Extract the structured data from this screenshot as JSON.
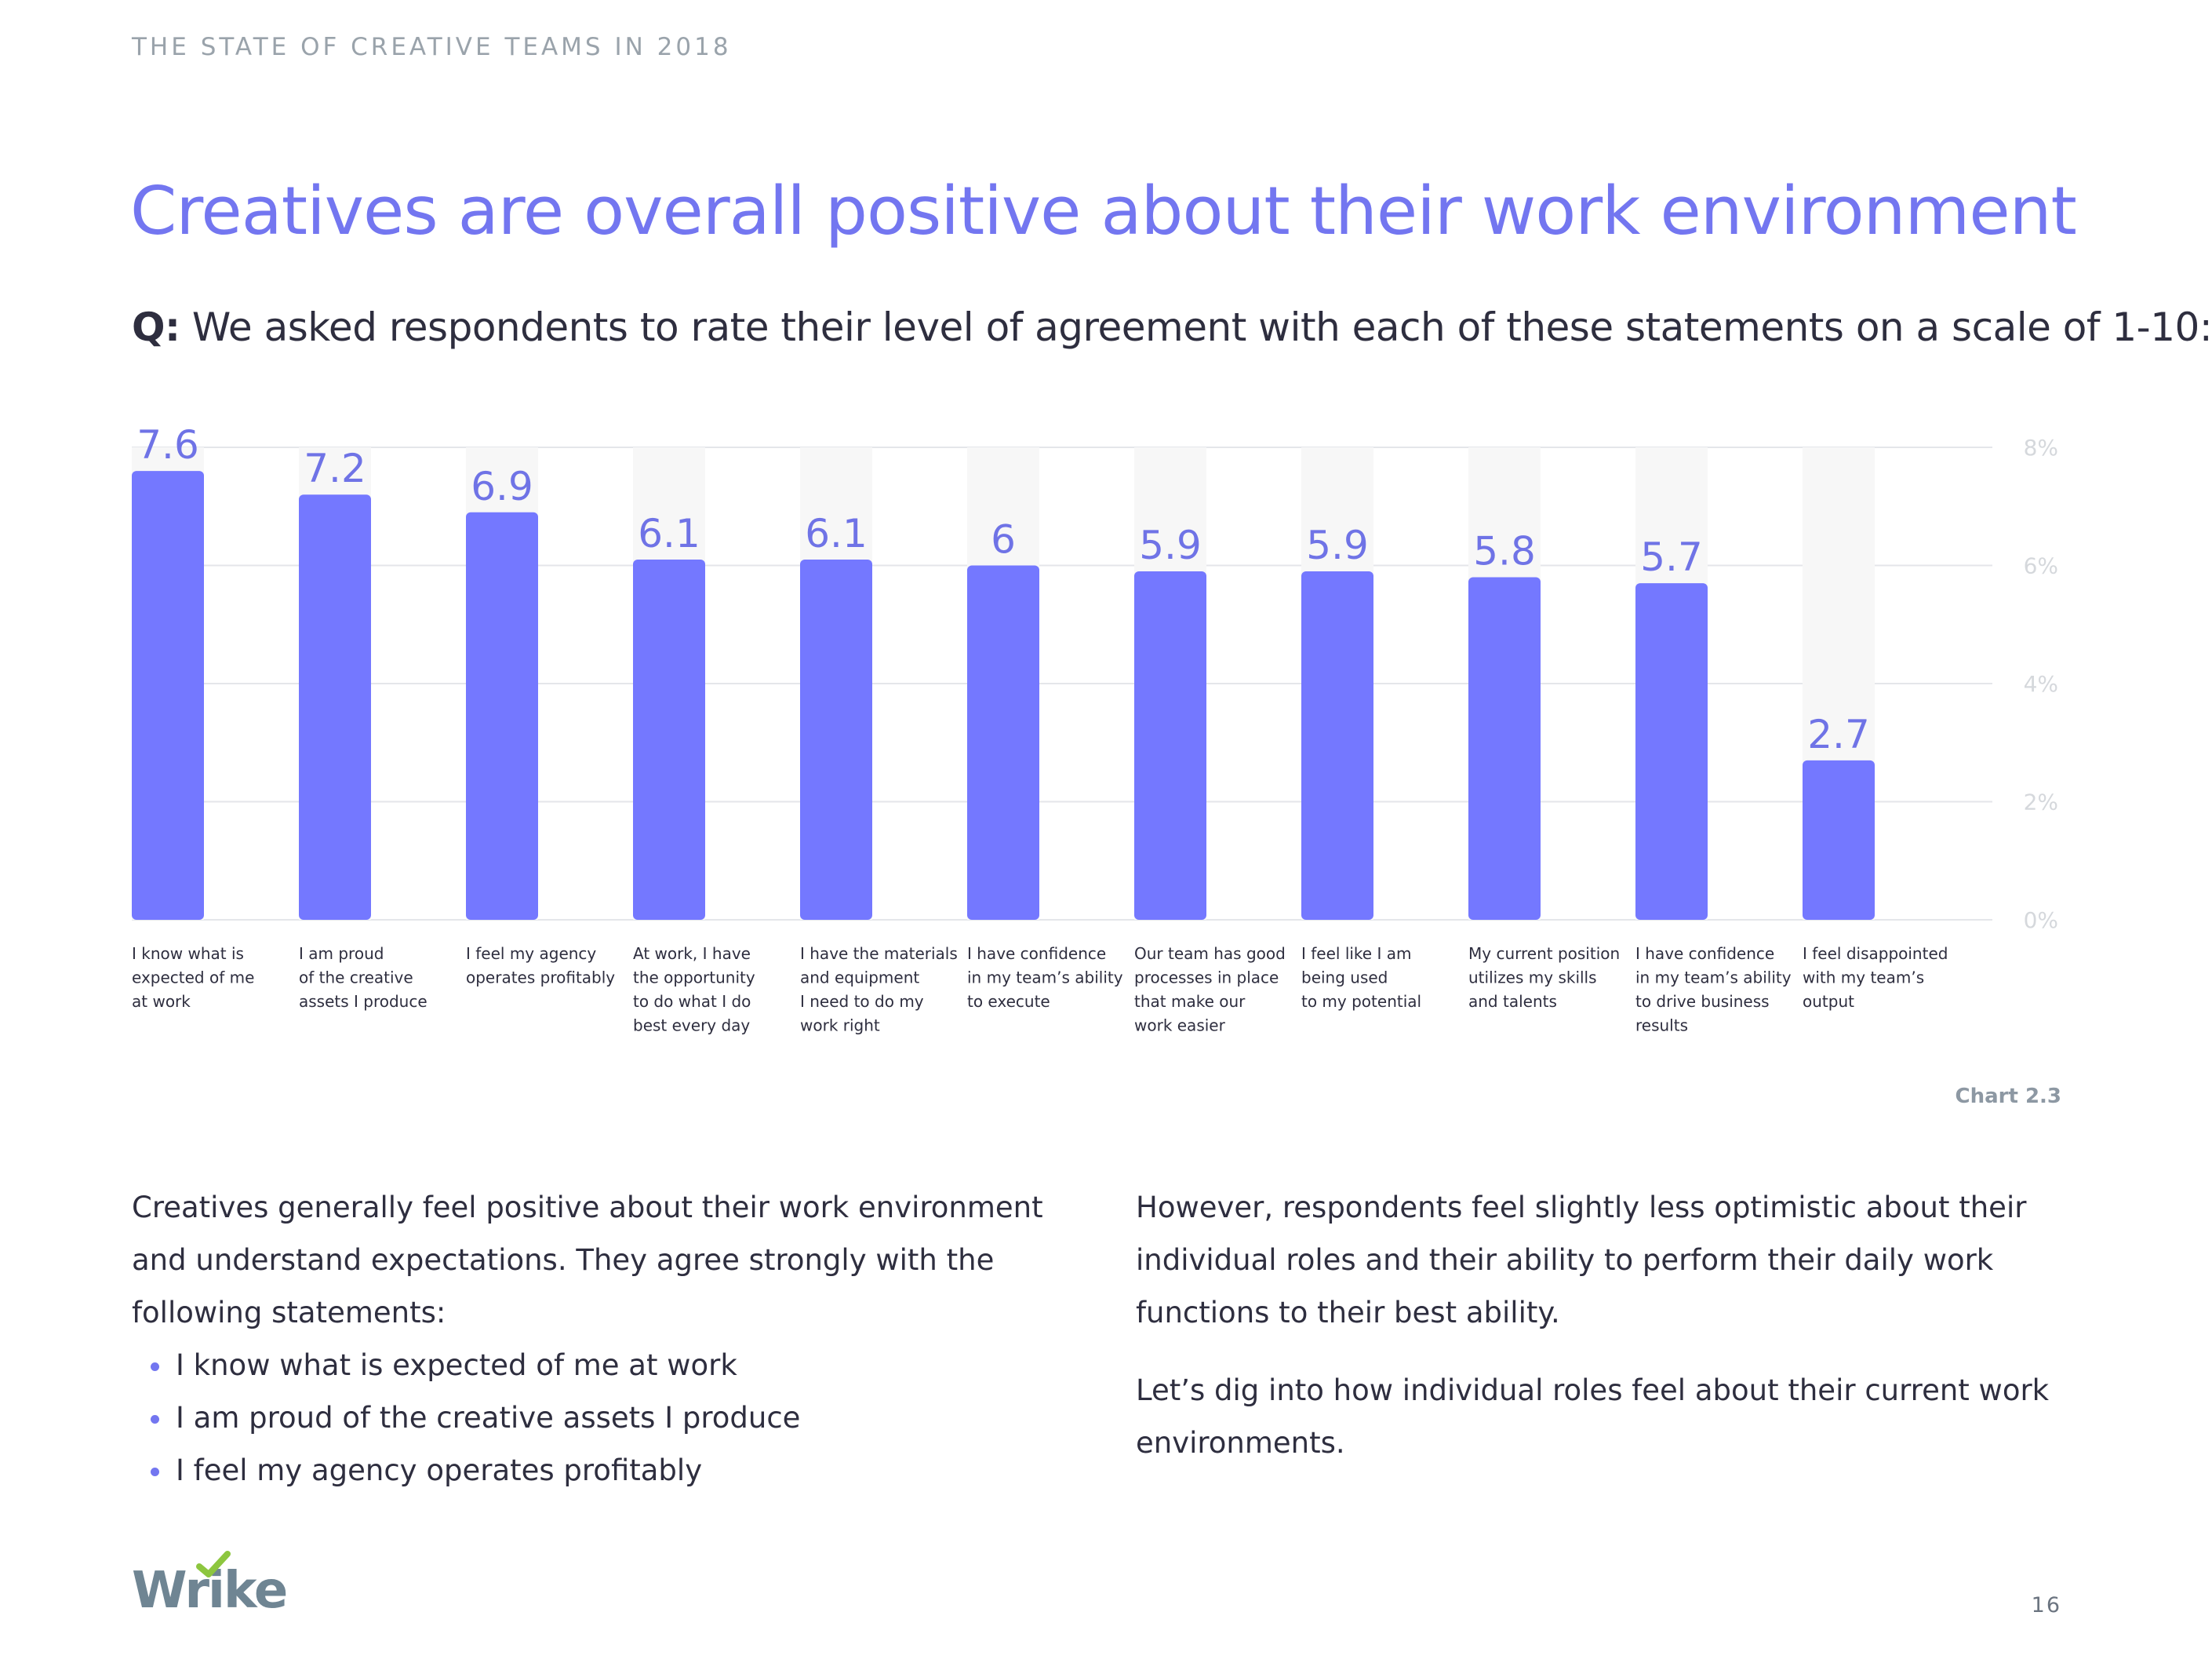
{
  "header": {
    "text": "THE STATE OF CREATIVE TEAMS IN 2018"
  },
  "title": "Creatives are overall positive about their work environment",
  "question": {
    "prefix": "Q:",
    "text": "We asked respondents to rate their level of agreement with each of these statements on a scale of 1-10:"
  },
  "chart_data": {
    "type": "bar",
    "categories": [
      [
        "I know what is",
        "expected of me",
        "at work"
      ],
      [
        "I am proud",
        "of the creative",
        "assets I produce"
      ],
      [
        "I feel my agency",
        "operates profitably"
      ],
      [
        "At work, I have",
        "the opportunity",
        "to do what I do",
        "best every day"
      ],
      [
        "I have the materials",
        "and equipment",
        "I need to do my",
        "work right"
      ],
      [
        "I have confidence",
        "in my team’s ability",
        "to execute"
      ],
      [
        "Our team has good",
        "processes in place",
        "that make our",
        "work easier"
      ],
      [
        "I feel like I am",
        "being used",
        "to my potential"
      ],
      [
        "My current position",
        "utilizes my skills",
        "and talents"
      ],
      [
        "I have confidence",
        "in my team’s ability",
        "to drive business",
        "results"
      ],
      [
        "I feel disappointed",
        "with my team’s",
        "output"
      ]
    ],
    "values": [
      7.6,
      7.2,
      6.9,
      6.1,
      6.1,
      6,
      5.9,
      5.9,
      5.8,
      5.7,
      2.7
    ],
    "value_labels": [
      "7.6",
      "7.2",
      "6.9",
      "6.1",
      "6.1",
      "6",
      "5.9",
      "5.9",
      "5.8",
      "5.7",
      "2.7"
    ],
    "y_ticks": [
      {
        "value": 0,
        "label": "0%"
      },
      {
        "value": 2,
        "label": "2%"
      },
      {
        "value": 4,
        "label": "4%"
      },
      {
        "value": 6,
        "label": "6%"
      },
      {
        "value": 8,
        "label": "8%"
      }
    ],
    "ylim": [
      0,
      8
    ],
    "grid": true,
    "colors": {
      "bar": "#7478ff",
      "track": "#f7f7f7",
      "value_label": "#6f73e6",
      "grid": "#e4e6ea",
      "tick": "#d5d8dc"
    }
  },
  "chart_caption": "Chart 2.3",
  "body": {
    "left": {
      "intro": "Creatives generally feel positive about their work environment and understand expectations. They agree strongly with the following statements:",
      "bullets": [
        "I know what is expected of me at work",
        "I am proud of the creative assets I produce",
        "I feel my agency operates profitably"
      ]
    },
    "right": {
      "p1": "However, respondents feel slightly less optimistic about their individual roles and their ability to perform their daily work functions to their best ability.",
      "p2": "Let’s dig into how individual roles feel about their current work environments."
    }
  },
  "footer": {
    "logo_text": "Wrike",
    "logo_accent": "#8dc63f",
    "page_number": "16"
  }
}
